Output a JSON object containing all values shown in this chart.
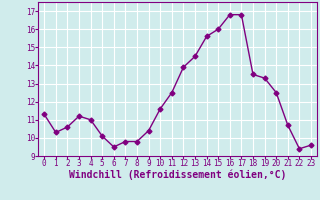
{
  "x": [
    0,
    1,
    2,
    3,
    4,
    5,
    6,
    7,
    8,
    9,
    10,
    11,
    12,
    13,
    14,
    15,
    16,
    17,
    18,
    19,
    20,
    21,
    22,
    23
  ],
  "y": [
    11.3,
    10.3,
    10.6,
    11.2,
    11.0,
    10.1,
    9.5,
    9.8,
    9.8,
    10.4,
    11.6,
    12.5,
    13.9,
    14.5,
    15.6,
    16.0,
    16.8,
    16.8,
    13.5,
    13.3,
    12.5,
    10.7,
    9.4,
    9.6
  ],
  "line_color": "#800080",
  "marker": "D",
  "marker_size": 2.5,
  "bg_color": "#d0ecec",
  "grid_color": "#ffffff",
  "xlabel": "Windchill (Refroidissement éolien,°C)",
  "ylim": [
    9,
    17.5
  ],
  "xlim": [
    -0.5,
    23.5
  ],
  "yticks": [
    9,
    10,
    11,
    12,
    13,
    14,
    15,
    16,
    17
  ],
  "xticks": [
    0,
    1,
    2,
    3,
    4,
    5,
    6,
    7,
    8,
    9,
    10,
    11,
    12,
    13,
    14,
    15,
    16,
    17,
    18,
    19,
    20,
    21,
    22,
    23
  ],
  "tick_fontsize": 5.5,
  "label_fontsize": 7.0,
  "line_width": 1.0,
  "font_family": "monospace"
}
